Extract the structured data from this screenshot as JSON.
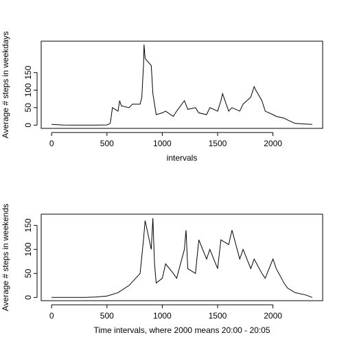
{
  "chart_data": [
    {
      "type": "line",
      "x_label": "intervals",
      "y_label": "Average # steps in weekdays",
      "x": [
        0,
        100,
        200,
        300,
        400,
        500,
        530,
        550,
        600,
        615,
        630,
        700,
        730,
        800,
        815,
        830,
        835,
        845,
        900,
        915,
        930,
        945,
        1000,
        1030,
        1100,
        1130,
        1200,
        1230,
        1300,
        1330,
        1400,
        1430,
        1500,
        1530,
        1545,
        1600,
        1630,
        1700,
        1730,
        1800,
        1830,
        1845,
        1900,
        1930,
        2000,
        2030,
        2100,
        2130,
        2200,
        2300,
        2355
      ],
      "values": [
        2.3,
        0.4,
        0,
        0,
        0.2,
        0.5,
        5,
        50,
        40,
        70,
        55,
        50,
        60,
        60,
        80,
        170,
        230,
        190,
        170,
        90,
        60,
        30,
        35,
        40,
        25,
        40,
        70,
        45,
        50,
        35,
        30,
        50,
        40,
        70,
        90,
        40,
        50,
        40,
        60,
        80,
        110,
        100,
        70,
        40,
        30,
        25,
        20,
        15,
        5,
        3,
        2
      ],
      "color": "#000000",
      "xlim": [
        -94.2,
        2449.2
      ],
      "xticks": [
        0,
        500,
        1000,
        1500,
        2000
      ],
      "ylim": [
        -9.2,
        239.6
      ],
      "yticks": [
        0,
        50,
        100,
        150
      ]
    },
    {
      "type": "line",
      "x_label": "Time intervals, where 2000 means 20:00 - 20:05",
      "y_label": "Average # steps in weekends",
      "x": [
        0,
        100,
        200,
        300,
        400,
        500,
        600,
        700,
        800,
        830,
        845,
        900,
        915,
        930,
        945,
        1000,
        1030,
        1100,
        1130,
        1200,
        1215,
        1230,
        1300,
        1330,
        1400,
        1430,
        1500,
        1530,
        1600,
        1630,
        1700,
        1730,
        1800,
        1830,
        1900,
        1930,
        2000,
        2030,
        2100,
        2130,
        2200,
        2300,
        2355
      ],
      "values": [
        0,
        0.2,
        0,
        0,
        1,
        3,
        10,
        25,
        50,
        120,
        160,
        100,
        165,
        70,
        30,
        40,
        70,
        50,
        40,
        100,
        140,
        60,
        50,
        120,
        80,
        100,
        60,
        120,
        110,
        140,
        80,
        100,
        60,
        80,
        50,
        40,
        80,
        60,
        30,
        20,
        10,
        5,
        0
      ],
      "color": "#000000",
      "xlim": [
        -94.2,
        2449.2
      ],
      "xticks": [
        0,
        500,
        1000,
        1500,
        2000
      ],
      "ylim": [
        -6.7,
        173.3
      ],
      "yticks": [
        0,
        50,
        100,
        150
      ]
    }
  ]
}
